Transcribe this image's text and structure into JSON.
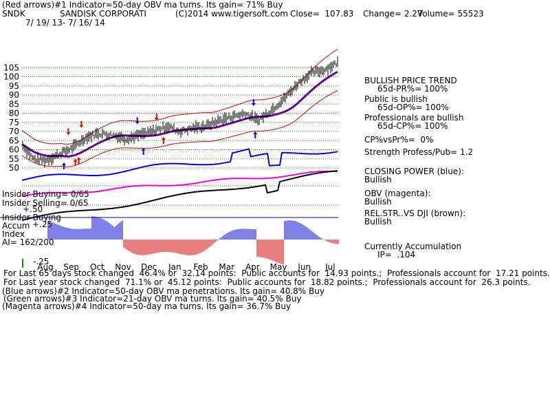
{
  "header": {
    "line1": "(Red arrows)#1 Indicator=50-day OBV ma turns. Its gain= 71% Buy",
    "symbol": "SNDK",
    "company": "SANDISK CORPORATI",
    "copyright": "(C)2014 www.tigersoft.com",
    "close": "Close=  107.83",
    "change": "Change= 2.27",
    "volume": "Volume= 55523",
    "date_range": "7/ 19/ 13- 7/ 16/ 14"
  },
  "right_panel": {
    "trend_title": "BULLISH PRICE TREND",
    "pr": "65d-PR%= 100%",
    "public_title": "Public is bullish",
    "op": "65d-OP%= 100%",
    "prof_title": "Professionals are bullish",
    "cp": "65d-CP%= 100%",
    "cpvspr": "CP%vsPr%=  0%",
    "strength": "Strength Profess/Pub= 1.2",
    "closing_power_title": "CLOSING POWER (blue):",
    "closing_power_val": "Bullish",
    "obv_title": "OBV (magenta):",
    "obv_val": "Bullish",
    "relstr_title": "REL.STR..VS DJI (brown):",
    "relstr_val": "Bullish",
    "accum_title": "Currently Accumulation",
    "ip": "IP=  .104"
  },
  "left_labels": {
    "insider_buying": "Insider Buying= 0/65",
    "insider_selling": "Insider Selling= 0/65",
    "insider_buying2": "Insider Buying",
    "accum": "Accum",
    "index": "Index",
    "ai": "AI= 162/200",
    "p50": "+.50",
    "p25": "+.25",
    "m25": "-.25"
  },
  "footer": {
    "line1": "For Last 65 days stock changed  46.4% or  32.14 points:  Public accounts for  14.93 points.;  Professionals account for  17.21 points.",
    "line2": "For Last year stock changed  71.1% or  45.12 points:  Public accounts for  18.82 points.;  Professionals account for  26.3 points.",
    "line3": "(Blue arrows)#2 Indicator=50-day OBV ma penetrations. Its gain= 40.8% Buy",
    "line4": "(Green arrows)#3 Indicator=21-day OBV ma turns. Its gain= 40.5% Buy",
    "line5": "(Magenta arrows)#4 Indicator=50-day ma turns. Its gain= 36.7% Buy"
  },
  "colors": {
    "price": "#000000",
    "band": "#cc0000",
    "ma": "#660099",
    "closing_power": "#0000ee",
    "obv": "#ee00ee",
    "relstr": "#000000",
    "accum_pos": "#0000cc",
    "accum_neg": "#cc0000",
    "grid": "#009900"
  },
  "chart_data": {
    "type": "line",
    "title": "SNDK",
    "y_ticks": [
      50,
      55,
      60,
      65,
      70,
      75,
      80,
      85,
      90,
      95,
      100,
      105
    ],
    "ylim": [
      46,
      110
    ],
    "x_ticks": [
      "Aug",
      "Sep",
      "Oct",
      "Nov",
      "Dec",
      "Jan",
      "Feb",
      "Mar",
      "Apr",
      "May",
      "Jun",
      "Jul"
    ],
    "price": {
      "name": "SNDK",
      "x": [
        "2013-07-19",
        "2013-08-01",
        "2013-08-15",
        "2013-09-01",
        "2013-09-15",
        "2013-10-01",
        "2013-10-15",
        "2013-11-01",
        "2013-11-15",
        "2013-12-01",
        "2013-12-15",
        "2014-01-01",
        "2014-01-15",
        "2014-02-01",
        "2014-02-15",
        "2014-03-01",
        "2014-03-15",
        "2014-04-01",
        "2014-04-15",
        "2014-05-01",
        "2014-05-15",
        "2014-06-01",
        "2014-06-15",
        "2014-07-01",
        "2014-07-16"
      ],
      "y": [
        63,
        55,
        54,
        58,
        61,
        67,
        69,
        68,
        66,
        68,
        70,
        73,
        70,
        72,
        73,
        76,
        78,
        80,
        76,
        82,
        88,
        97,
        102,
        104,
        108
      ]
    },
    "arrows": [
      {
        "type": "red",
        "direction": "down",
        "x": "2013-09-10",
        "y": 68
      },
      {
        "type": "red",
        "direction": "down",
        "x": "2013-09-25",
        "y": 72
      },
      {
        "type": "red",
        "direction": "up",
        "x": "2013-09-18",
        "y": 55
      },
      {
        "type": "red",
        "direction": "up",
        "x": "2013-09-22",
        "y": 56
      },
      {
        "type": "red",
        "direction": "down",
        "x": "2013-12-20",
        "y": 76
      },
      {
        "type": "red",
        "direction": "up",
        "x": "2013-12-28",
        "y": 67
      },
      {
        "type": "blue",
        "direction": "up",
        "x": "2013-09-05",
        "y": 53
      },
      {
        "type": "blue",
        "direction": "down",
        "x": "2013-11-28",
        "y": 74
      },
      {
        "type": "blue",
        "direction": "up",
        "x": "2013-12-05",
        "y": 61
      },
      {
        "type": "blue",
        "direction": "down",
        "x": "2014-04-10",
        "y": 84
      },
      {
        "type": "blue",
        "direction": "up",
        "x": "2014-04-12",
        "y": 70
      }
    ]
  }
}
